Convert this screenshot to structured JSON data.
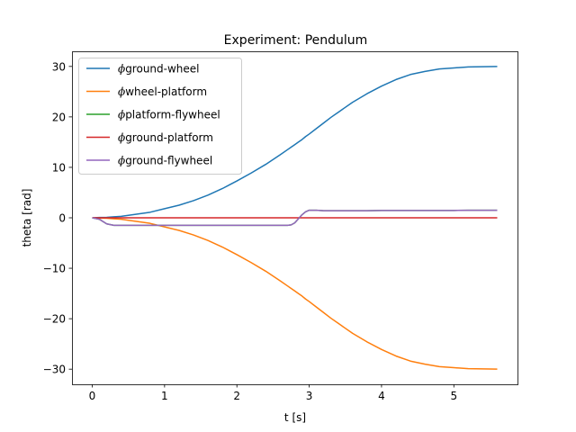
{
  "chart_data": {
    "type": "line",
    "title": "Experiment: Pendulum",
    "xlabel": "t [s]",
    "ylabel": "theta [rad]",
    "xlim": [
      -0.28,
      5.88
    ],
    "ylim": [
      -33.0,
      33.0
    ],
    "xticks": [
      0,
      1,
      2,
      3,
      4,
      5
    ],
    "yticks": [
      -30,
      -20,
      -10,
      0,
      10,
      20,
      30
    ],
    "grid": false,
    "legend_position": "top-left",
    "x": [
      0,
      0.1,
      0.2,
      0.3,
      0.4,
      0.5,
      0.6,
      0.8,
      1.0,
      1.2,
      1.4,
      1.6,
      1.8,
      2.0,
      2.2,
      2.4,
      2.6,
      2.7,
      2.75,
      2.8,
      2.85,
      2.9,
      2.95,
      3.0,
      3.1,
      3.2,
      3.3,
      3.4,
      3.6,
      3.8,
      4.0,
      4.2,
      4.4,
      4.6,
      4.8,
      5.0,
      5.2,
      5.4,
      5.6
    ],
    "series": [
      {
        "name": "ϕground-wheel",
        "color": "#1f77b4",
        "values": [
          0,
          0.06,
          0.1,
          0.2,
          0.3,
          0.5,
          0.7,
          1.1,
          1.8,
          2.5,
          3.4,
          4.5,
          5.8,
          7.3,
          8.9,
          10.6,
          12.5,
          13.5,
          14.0,
          14.5,
          15.0,
          15.5,
          16.1,
          16.6,
          17.7,
          18.8,
          19.9,
          20.9,
          22.9,
          24.6,
          26.1,
          27.4,
          28.4,
          29.0,
          29.5,
          29.7,
          29.9,
          29.95,
          30.0
        ]
      },
      {
        "name": "ϕwheel-platform",
        "color": "#ff7f0e",
        "values": [
          0,
          -0.06,
          -0.1,
          -0.2,
          -0.3,
          -0.5,
          -0.7,
          -1.1,
          -1.8,
          -2.5,
          -3.4,
          -4.5,
          -5.8,
          -7.3,
          -8.9,
          -10.6,
          -12.5,
          -13.5,
          -14.0,
          -14.5,
          -15.0,
          -15.5,
          -16.1,
          -16.6,
          -17.7,
          -18.8,
          -19.9,
          -20.9,
          -22.9,
          -24.6,
          -26.1,
          -27.4,
          -28.4,
          -29.0,
          -29.5,
          -29.7,
          -29.9,
          -29.95,
          -30.0
        ]
      },
      {
        "name": "ϕplatform-flywheel",
        "color": "#2ca02c",
        "values": [
          0,
          -0.3,
          -1.2,
          -1.5,
          -1.5,
          -1.5,
          -1.5,
          -1.5,
          -1.5,
          -1.5,
          -1.5,
          -1.5,
          -1.5,
          -1.5,
          -1.5,
          -1.5,
          -1.5,
          -1.5,
          -1.4,
          -1.0,
          -0.2,
          0.6,
          1.2,
          1.5,
          1.5,
          1.4,
          1.4,
          1.4,
          1.4,
          1.4,
          1.45,
          1.45,
          1.45,
          1.45,
          1.45,
          1.45,
          1.5,
          1.5,
          1.5
        ]
      },
      {
        "name": "ϕground-platform",
        "color": "#d62728",
        "values": [
          0,
          0,
          0,
          0,
          0,
          0,
          0,
          0,
          0,
          0,
          0,
          0,
          0,
          0,
          0,
          0,
          0,
          0,
          0,
          0,
          0,
          0,
          0,
          0,
          0,
          0,
          0,
          0,
          0,
          0,
          0,
          0,
          0,
          0,
          0,
          0,
          0,
          0,
          0
        ]
      },
      {
        "name": "ϕground-flywheel",
        "color": "#9467bd",
        "values": [
          0,
          -0.3,
          -1.2,
          -1.5,
          -1.5,
          -1.5,
          -1.5,
          -1.5,
          -1.5,
          -1.5,
          -1.5,
          -1.5,
          -1.5,
          -1.5,
          -1.5,
          -1.5,
          -1.5,
          -1.5,
          -1.4,
          -1.0,
          -0.2,
          0.6,
          1.2,
          1.5,
          1.5,
          1.4,
          1.4,
          1.4,
          1.4,
          1.4,
          1.45,
          1.45,
          1.45,
          1.45,
          1.45,
          1.45,
          1.5,
          1.5,
          1.5
        ]
      }
    ]
  }
}
